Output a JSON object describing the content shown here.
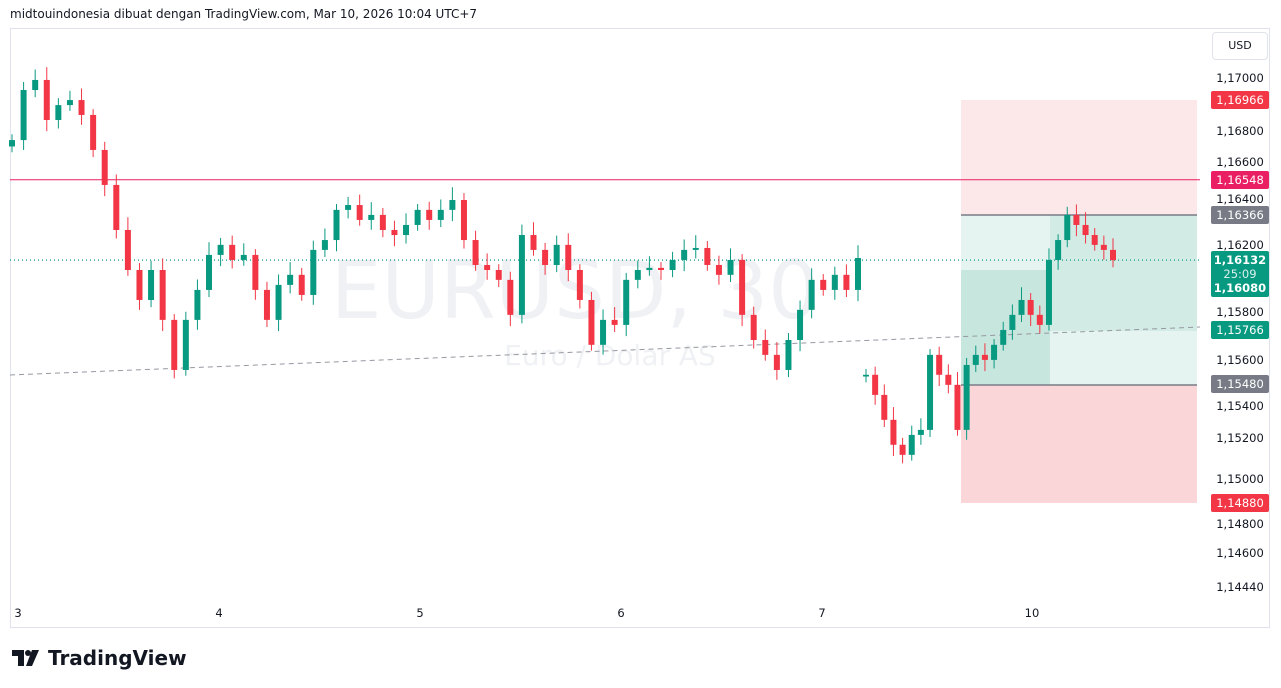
{
  "header": {
    "text": "midtouindonesia dibuat dengan TradingView.com, Mar 10, 2026 10:04 UTC+7"
  },
  "logo": {
    "text": "TradingView"
  },
  "currency_button": "USD",
  "watermark": {
    "symbol": "EURUSD, 30",
    "name": "Euro / Dolar AS"
  },
  "chart_data": {
    "type": "candlestick",
    "symbol": "EURUSD",
    "interval": "30",
    "ylim": [
      1.144,
      1.172
    ],
    "y_ticks": [
      "1,17000",
      "1,16800",
      "1,16600",
      "1,16400",
      "1,16200",
      "1,15800",
      "1,15600",
      "1,15400",
      "1,15200",
      "1,15000",
      "1,14800",
      "1,14600",
      "1,14440"
    ],
    "x_ticks": [
      "3",
      "4",
      "5",
      "6",
      "7",
      "10"
    ],
    "grid": false,
    "session1_closes": [
      1.16753,
      1.17012,
      1.17064,
      1.16857,
      1.16934,
      1.1696,
      1.16883,
      1.16702,
      1.16521,
      1.16288,
      1.16081,
      1.15926,
      1.16081,
      1.15823,
      1.15564,
      1.15823,
      1.15978,
      1.16159,
      1.16211,
      1.16133,
      1.16159,
      1.15978,
      1.15823,
      1.16004,
      1.16056,
      1.15952,
      1.16185,
      1.16236,
      1.16392,
      1.16417,
      1.1634,
      1.16366,
      1.16288,
      1.16262,
      1.16314,
      1.16392,
      1.1634,
      1.16392,
      1.16443,
      1.16236,
      1.16107,
      1.16081,
      1.1603,
      1.15849,
      1.16262,
      1.16185,
      1.16107,
      1.16211,
      1.16081,
      1.15926,
      1.15694,
      1.15823,
      1.15797,
      1.1603,
      1.16081,
      1.16092,
      1.16081,
      1.16133,
      1.16185,
      1.16195,
      1.16107,
      1.16056,
      1.16133,
      1.15849,
      1.15719,
      1.15642,
      1.15564,
      1.15719,
      1.15875,
      1.1603,
      1.15978,
      1.16056,
      1.15978,
      1.16143
    ],
    "session2_closes": [
      1.15539,
      1.15435,
      1.15306,
      1.15177,
      1.15125,
      1.15228,
      1.15254,
      1.15642,
      1.15539,
      1.15487,
      1.15254,
      1.1559,
      1.15642,
      1.15616,
      1.15694,
      1.15771,
      1.15849,
      1.15926,
      1.15849,
      1.15797,
      1.16133,
      1.16236,
      1.16366,
      1.16314,
      1.16262,
      1.16211,
      1.16185,
      1.16132
    ],
    "horizontal_line": {
      "price": 1.16548,
      "label": "1,16548",
      "color": "#e91e63"
    },
    "current_price": {
      "price": 1.16132,
      "label": "1,16132",
      "countdown": "25:09",
      "color": "#089981"
    },
    "trend_line": {
      "label": "1,15766",
      "color": "#089981"
    },
    "position": {
      "take_profit": "1,16966",
      "stop_loss": "1,14880",
      "level_a": "1,16366",
      "level_b": "1,15480",
      "entry": "1,16080"
    },
    "colors": {
      "up": "#089981",
      "down": "#f23645",
      "profit_zone": "#e6f4f1",
      "loss_zone": "#fde8e9"
    }
  }
}
